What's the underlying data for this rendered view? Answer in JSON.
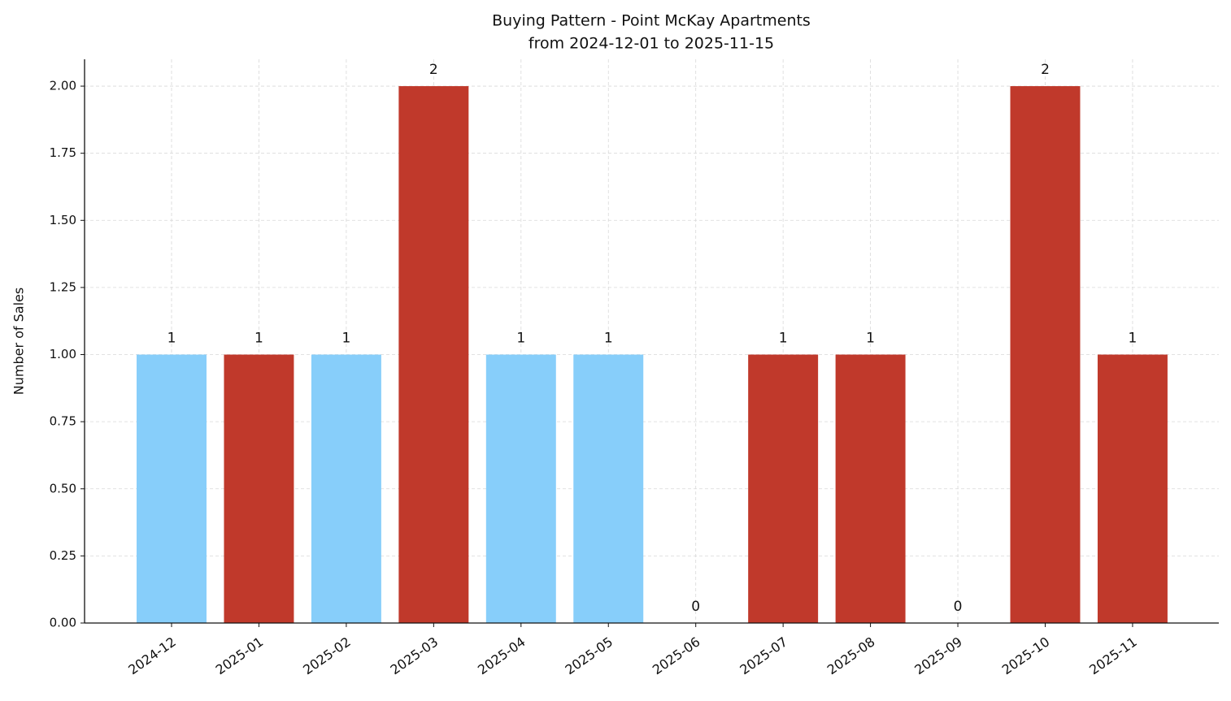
{
  "chart_data": {
    "type": "bar",
    "title": "Buying Pattern - Point McKay Apartments",
    "subtitle": "from 2024-12-01 to 2025-11-15",
    "y_label": "Number of Sales",
    "categories": [
      "2024-12",
      "2025-01",
      "2025-02",
      "2025-03",
      "2025-04",
      "2025-05",
      "2025-06",
      "2025-07",
      "2025-08",
      "2025-09",
      "2025-10",
      "2025-11"
    ],
    "values": [
      1,
      1,
      1,
      2,
      1,
      1,
      0,
      1,
      1,
      0,
      2,
      1
    ],
    "colors": [
      "#87cefa",
      "#c0392b",
      "#87cefa",
      "#c0392b",
      "#87cefa",
      "#87cefa",
      null,
      "#c0392b",
      "#c0392b",
      null,
      "#c0392b",
      "#c0392b"
    ],
    "ylim": [
      0,
      2.1
    ],
    "yticks": [
      {
        "value": 0,
        "label": "0.00"
      },
      {
        "value": 0.25,
        "label": "0.25"
      },
      {
        "value": 0.5,
        "label": "0.50"
      },
      {
        "value": 0.75,
        "label": "0.75"
      },
      {
        "value": 1,
        "label": "1.00"
      },
      {
        "value": 1.25,
        "label": "1.25"
      },
      {
        "value": 1.5,
        "label": "1.50"
      },
      {
        "value": 1.75,
        "label": "1.75"
      },
      {
        "value": 2,
        "label": "2.00"
      }
    ],
    "grid": true
  }
}
